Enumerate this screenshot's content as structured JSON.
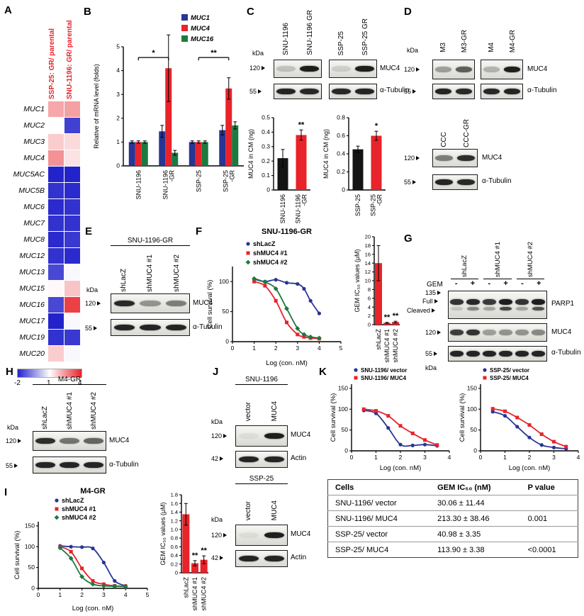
{
  "panels": {
    "a": "A",
    "b": "B",
    "c": "C",
    "d": "D",
    "e": "E",
    "f": "F",
    "g": "G",
    "h": "H",
    "i": "I",
    "j": "J",
    "k": "K"
  },
  "colors": {
    "blue": "#283593",
    "red": "#e8232a",
    "green": "#1b7a3f",
    "black": "#141414",
    "hm_blue": "#2323cc",
    "hm_red": "#e8232a"
  },
  "labels": {
    "kda": "kDa"
  },
  "chart_data": [
    {
      "id": "muc-heatmap",
      "type": "heatmap",
      "columns": [
        "SSP-25: GR/ parental",
        "SNU-1196: GR/ parental"
      ],
      "rows": [
        "MUC1",
        "MUC2",
        "MUC3",
        "MUC4",
        "MUC5AC",
        "MUC5B",
        "MUC6",
        "MUC7",
        "MUC8",
        "MUC12",
        "MUC13",
        "MUC15",
        "MUC16",
        "MUC17",
        "MUC19",
        "MUC20"
      ],
      "values": [
        [
          2.2,
          2.3
        ],
        [
          1.0,
          -1.6
        ],
        [
          1.7,
          1.5
        ],
        [
          2.5,
          1.4
        ],
        [
          -2.0,
          -2.0
        ],
        [
          -1.8,
          -1.9
        ],
        [
          -1.9,
          -1.8
        ],
        [
          -1.8,
          -1.8
        ],
        [
          -1.9,
          -1.7
        ],
        [
          -1.8,
          -1.9
        ],
        [
          -1.5,
          0.9
        ],
        [
          1.1,
          1.8
        ],
        [
          -1.5,
          3.6
        ],
        [
          -2.0,
          0.9
        ],
        [
          -1.8,
          -1.7
        ],
        [
          1.7,
          0.9
        ]
      ],
      "scale": {
        "min": -2,
        "mid": 1,
        "max": 4,
        "labels": [
          "-2",
          "1",
          "4"
        ]
      }
    },
    {
      "id": "mrna-bars",
      "type": "bar",
      "ylabel": "Relative of mRNA level (folds)",
      "ylim": [
        0,
        5
      ],
      "yticks": [
        0,
        1,
        2,
        3,
        4,
        5
      ],
      "categories": [
        "SNU-1196",
        "SNU-1196\n-GR",
        "SSP-25",
        "SSP-25\n-GR"
      ],
      "series": [
        {
          "name": "MUC1",
          "color": "blue",
          "values": [
            1.0,
            1.45,
            1.0,
            1.5
          ],
          "errors": [
            0.05,
            0.25,
            0.05,
            0.2
          ]
        },
        {
          "name": "MUC4",
          "color": "red",
          "values": [
            1.0,
            4.1,
            1.0,
            3.25
          ],
          "errors": [
            0.05,
            1.4,
            0.05,
            0.45
          ]
        },
        {
          "name": "MUC16",
          "color": "green",
          "values": [
            1.0,
            0.55,
            1.0,
            1.7
          ],
          "errors": [
            0.05,
            0.1,
            0.05,
            0.15
          ]
        }
      ],
      "sig": [
        {
          "c1": 0,
          "c2": 1,
          "y": 4.55,
          "label": "*"
        },
        {
          "c1": 2,
          "c2": 3,
          "y": 4.55,
          "label": "**"
        }
      ]
    },
    {
      "id": "cm-bar-snu",
      "type": "bar",
      "ylabel": "MUC4 in CM (ng)",
      "ylim": [
        0,
        0.5
      ],
      "yticks": [
        0,
        0.1,
        0.2,
        0.3,
        0.4,
        0.5
      ],
      "tick_dp": 1,
      "categories": [
        "SNU-1196",
        "SNU-1196\n-GR"
      ],
      "series": [
        {
          "colors": [
            "black",
            "red"
          ],
          "values": [
            0.22,
            0.38
          ],
          "errors": [
            0.06,
            0.035
          ]
        }
      ],
      "stars": [
        {
          "cat": 1,
          "label": "**"
        }
      ]
    },
    {
      "id": "cm-bar-ssp",
      "type": "bar",
      "ylabel": "MUC4 in CM (ng)",
      "ylim": [
        0,
        0.8
      ],
      "yticks": [
        0,
        0.2,
        0.4,
        0.6,
        0.8
      ],
      "tick_dp": 1,
      "categories": [
        "SSP-25",
        "SSP-25\n-GR"
      ],
      "series": [
        {
          "colors": [
            "black",
            "red"
          ],
          "values": [
            0.45,
            0.6
          ],
          "errors": [
            0.035,
            0.05
          ]
        }
      ],
      "stars": [
        {
          "cat": 1,
          "label": "*"
        }
      ]
    },
    {
      "id": "surv-snu1196gr",
      "type": "line",
      "title": "SNU-1196-GR",
      "xlabel": "Log (con. nM)",
      "ylabel": "Cell survival (%)",
      "xlim": [
        0,
        5
      ],
      "xticks": [
        0,
        1,
        2,
        3,
        4,
        5
      ],
      "ylim": [
        0,
        125
      ],
      "yticks": [
        0,
        50,
        100
      ],
      "series": [
        {
          "name": "shLacZ",
          "color": "blue",
          "marker": "circle",
          "x": [
            1,
            1.5,
            2,
            2.5,
            3,
            3.3,
            3.6,
            4
          ],
          "y": [
            104,
            100,
            103,
            98,
            96,
            88,
            68,
            47
          ]
        },
        {
          "name": "shMUC4 #1",
          "color": "red",
          "marker": "square",
          "x": [
            1,
            1.5,
            2,
            2.5,
            3,
            3.3,
            3.6,
            4
          ],
          "y": [
            100,
            93,
            68,
            32,
            12,
            8,
            6,
            5
          ]
        },
        {
          "name": "shMUC4 #2",
          "color": "green",
          "marker": "diamond",
          "x": [
            1,
            1.5,
            2,
            2.5,
            3,
            3.3,
            3.6,
            4
          ],
          "y": [
            105,
            99,
            88,
            55,
            22,
            12,
            8,
            6
          ]
        }
      ]
    },
    {
      "id": "ic50-snu1196gr",
      "type": "bar",
      "ylabel": "GEM IC₅₀ values (μM)",
      "ylim": [
        0,
        20
      ],
      "yticks": [
        0,
        2,
        4,
        6,
        8,
        10,
        12,
        14,
        16,
        18,
        20
      ],
      "categories": [
        "shLacZ",
        "shMUC4 #1",
        "shMUC4 #2"
      ],
      "series": [
        {
          "colors": [
            "red",
            "red",
            "red"
          ],
          "values": [
            14,
            0.4,
            0.6
          ],
          "errors": [
            4,
            0.12,
            0.18
          ]
        }
      ],
      "stars": [
        {
          "cat": 1,
          "label": "**"
        },
        {
          "cat": 2,
          "label": "**"
        }
      ]
    },
    {
      "id": "surv-m4gr",
      "type": "line",
      "title": "M4-GR",
      "xlabel": "Log (con. nM)",
      "ylabel": "Cell survival (%)",
      "xlim": [
        0,
        5
      ],
      "xticks": [
        0,
        1,
        2,
        3,
        4,
        5
      ],
      "ylim": [
        0,
        160
      ],
      "yticks": [
        0,
        50,
        100,
        150
      ],
      "series": [
        {
          "name": "shLacZ",
          "color": "blue",
          "marker": "circle",
          "x": [
            1,
            1.5,
            2,
            2.5,
            3,
            3.5,
            4
          ],
          "y": [
            102,
            100,
            99,
            96,
            62,
            18,
            6
          ]
        },
        {
          "name": "shMUC4 #1",
          "color": "red",
          "marker": "square",
          "x": [
            1,
            1.5,
            2,
            2.5,
            3,
            3.5,
            4
          ],
          "y": [
            100,
            88,
            48,
            18,
            10,
            6,
            5
          ]
        },
        {
          "name": "shMUC4 #2",
          "color": "green",
          "marker": "diamond",
          "x": [
            1,
            1.5,
            2,
            2.5,
            3,
            3.5,
            4
          ],
          "y": [
            97,
            72,
            28,
            10,
            6,
            5,
            4
          ]
        }
      ]
    },
    {
      "id": "ic50-m4gr",
      "type": "bar",
      "ylabel": "GEM IC₅₀ values (μM)",
      "ylim": [
        0,
        1.8
      ],
      "yticks": [
        0,
        0.2,
        0.4,
        0.6,
        0.8,
        1.0,
        1.2,
        1.4,
        1.6,
        1.8
      ],
      "tick_dp": 1,
      "categories": [
        "shLacZ",
        "shMUC4 #1",
        "shMUC4 #2"
      ],
      "series": [
        {
          "colors": [
            "red",
            "red",
            "red"
          ],
          "values": [
            1.35,
            0.22,
            0.3
          ],
          "errors": [
            0.25,
            0.06,
            0.09
          ]
        }
      ],
      "stars": [
        {
          "cat": 1,
          "label": "**"
        },
        {
          "cat": 2,
          "label": "**"
        }
      ]
    },
    {
      "id": "surv-k-snu",
      "type": "line",
      "xlabel": "Log (con. nM)",
      "ylabel": "Cell survival (%)",
      "xlim": [
        0,
        4
      ],
      "xticks": [
        0,
        1,
        2,
        3,
        4
      ],
      "ylim": [
        0,
        160
      ],
      "yticks": [
        0,
        50,
        100,
        150
      ],
      "series": [
        {
          "name": "SNU-1196/ vector",
          "color": "blue",
          "marker": "circle",
          "x": [
            0.5,
            1,
            1.5,
            2,
            2.5,
            3,
            3.5
          ],
          "y": [
            97,
            90,
            55,
            15,
            13,
            15,
            12
          ]
        },
        {
          "name": "SNU-1196/ MUC4",
          "color": "red",
          "marker": "square",
          "x": [
            0.5,
            1,
            1.5,
            2,
            2.5,
            3,
            3.5
          ],
          "y": [
            100,
            96,
            84,
            60,
            42,
            26,
            14
          ]
        }
      ]
    },
    {
      "id": "surv-k-ssp",
      "type": "line",
      "xlabel": "Log (con. nM)",
      "ylabel": "Cell survival (%)",
      "xlim": [
        0,
        4
      ],
      "xticks": [
        0,
        1,
        2,
        3,
        4
      ],
      "ylim": [
        0,
        160
      ],
      "yticks": [
        0,
        50,
        100,
        150
      ],
      "series": [
        {
          "name": "SSP-25/ vector",
          "color": "blue",
          "marker": "circle",
          "x": [
            0.5,
            1,
            1.5,
            2,
            2.5,
            3,
            3.5
          ],
          "y": [
            94,
            84,
            58,
            32,
            14,
            8,
            5
          ]
        },
        {
          "name": "SSP-25/ MUC4",
          "color": "red",
          "marker": "square",
          "x": [
            0.5,
            1,
            1.5,
            2,
            2.5,
            3,
            3.5
          ],
          "y": [
            101,
            95,
            80,
            62,
            40,
            22,
            10
          ]
        }
      ]
    },
    {
      "id": "ic50-table",
      "type": "table",
      "headers": [
        "Cells",
        "GEM IC₅₀ (nM)",
        "P value"
      ],
      "rows": [
        [
          "SNU-1196/ vector",
          "30.06 ± 11.44",
          ""
        ],
        [
          "SNU-1196/ MUC4",
          "213.30 ± 38.46",
          "0.001"
        ],
        [
          "SSP-25/ vector",
          "40.98 ± 3.35",
          ""
        ],
        [
          "SSP-25/ MUC4",
          "113.90 ± 3.38",
          "<0.0001"
        ]
      ]
    }
  ],
  "blots": {
    "C": {
      "groups": [
        {
          "lanes": [
            "SNU-1196",
            "SNU-1196 GR"
          ]
        },
        {
          "lanes": [
            "SSP-25",
            "SSP-25 GR"
          ]
        }
      ],
      "rows": [
        {
          "marker": "120",
          "label": "MUC4",
          "bands": [
            [
              0.18,
              0.95
            ],
            [
              0.12,
              0.95
            ]
          ]
        },
        {
          "marker": "55",
          "label": "α-Tubulin",
          "bands": [
            [
              0.92,
              0.9
            ],
            [
              0.9,
              0.92
            ]
          ]
        }
      ]
    },
    "D": {
      "groups": [
        {
          "lanes": [
            "M3",
            "M3-GR"
          ]
        },
        {
          "lanes": [
            "M4",
            "M4-GR"
          ]
        }
      ],
      "rows": [
        {
          "marker": "120",
          "label": "MUC4",
          "bands": [
            [
              0.35,
              0.65
            ],
            [
              0.25,
              0.95
            ]
          ]
        },
        {
          "marker": "55",
          "label": "α-Tubulin",
          "bands": [
            [
              0.92,
              0.9
            ],
            [
              0.9,
              0.92
            ]
          ]
        }
      ]
    },
    "D2": {
      "lanes": [
        "CCC",
        "CCC-GR"
      ],
      "rows": [
        {
          "marker": "120",
          "label": "MUC4",
          "bands": [
            [
              0.5,
              0.88
            ]
          ]
        },
        {
          "marker": "55",
          "label": "α-Tubulin",
          "bands": [
            [
              0.92,
              0.9
            ]
          ]
        }
      ]
    },
    "E": {
      "title": "SNU-1196-GR",
      "lanes": [
        "shLacZ",
        "shMUC4 #1",
        "shMUC4 #2"
      ],
      "rows": [
        {
          "marker": "120",
          "label": "MUC4",
          "bands": [
            [
              0.9,
              0.4,
              0.5
            ]
          ]
        },
        {
          "marker": "55",
          "label": "α-Tubulin",
          "bands": [
            [
              0.92,
              0.92,
              0.92
            ]
          ]
        }
      ]
    },
    "G": {
      "groups": [
        "shLacZ",
        "shMUC4 #1",
        "shMUC4 #2"
      ],
      "gem": {
        "label": "GEM",
        "signs": [
          "-",
          "+",
          "-",
          "+",
          "-",
          "+"
        ]
      },
      "parp": {
        "marker": "135",
        "label": "PARP1",
        "full_label": "Full",
        "cleaved_label": "Cleaved",
        "full_bands": [
          0.85,
          0.9,
          0.82,
          0.95,
          0.85,
          0.95
        ],
        "cleaved_bands": [
          0.15,
          0.45,
          0.3,
          0.75,
          0.3,
          0.7
        ]
      },
      "rows": [
        {
          "marker": "120",
          "label": "MUC4",
          "bands": [
            [
              0.8,
              0.85,
              0.35,
              0.4,
              0.4,
              0.45
            ]
          ]
        },
        {
          "marker": "55",
          "label": "α-Tubulin",
          "bands": [
            [
              0.92,
              0.92,
              0.92,
              0.92,
              0.92,
              0.92
            ]
          ]
        }
      ]
    },
    "H": {
      "title": "M4-GR",
      "lanes": [
        "shLacZ",
        "shMUC4 #1",
        "shMUC4 #2"
      ],
      "rows": [
        {
          "marker": "120",
          "label": "MUC4",
          "bands": [
            [
              0.88,
              0.55,
              0.62
            ]
          ]
        },
        {
          "marker": "55",
          "label": "α-Tubulin",
          "bands": [
            [
              0.92,
              0.92,
              0.92
            ]
          ]
        }
      ]
    },
    "J1": {
      "title": "SNU-1196",
      "lanes": [
        "vector",
        "MUC4"
      ],
      "rows": [
        {
          "marker": "120",
          "label": "MUC4",
          "bands": [
            [
              0.05,
              0.95
            ]
          ]
        },
        {
          "marker": "42",
          "label": "Actin",
          "bands": [
            [
              0.92,
              0.92
            ]
          ]
        }
      ]
    },
    "J2": {
      "title": "SSP-25",
      "lanes": [
        "vector",
        "MUC4"
      ],
      "rows": [
        {
          "marker": "120",
          "label": "MUC4",
          "bands": [
            [
              0.05,
              0.95
            ]
          ]
        },
        {
          "marker": "42",
          "label": "Actin",
          "bands": [
            [
              0.92,
              0.92
            ]
          ]
        }
      ]
    }
  }
}
